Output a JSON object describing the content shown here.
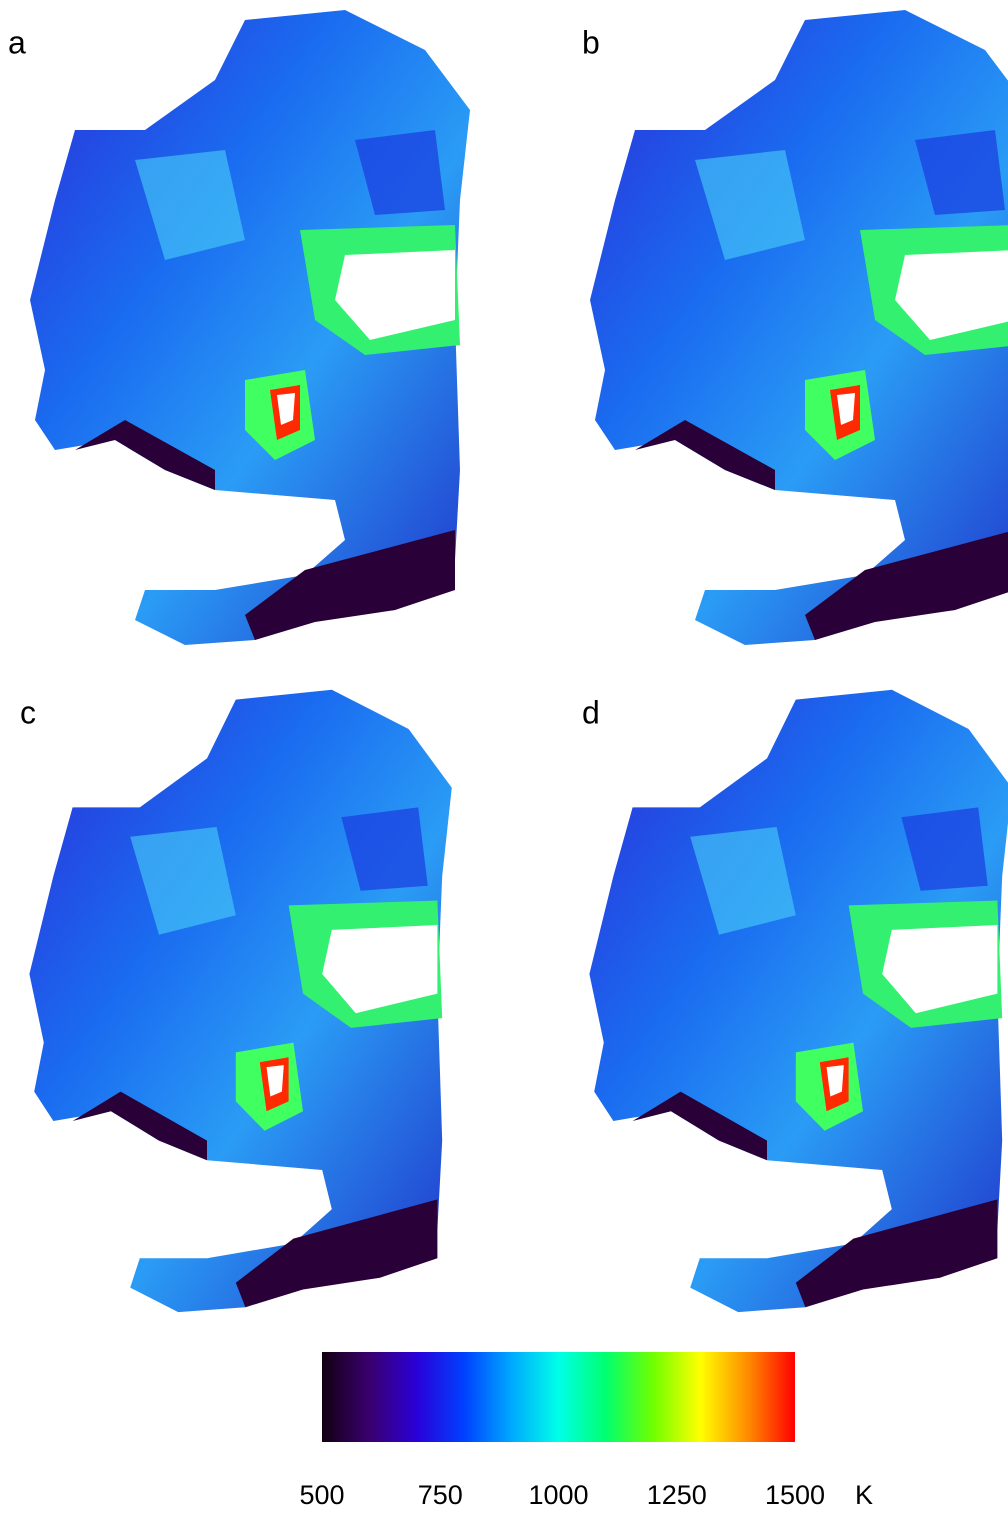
{
  "panels": [
    {
      "label": "a"
    },
    {
      "label": "b"
    },
    {
      "label": "c"
    },
    {
      "label": "d"
    }
  ],
  "colorbar": {
    "lim": [
      500,
      1500
    ],
    "ticks": [
      500,
      750,
      1000,
      1250,
      1500
    ],
    "unit": "K",
    "colors": [
      "#120012",
      "#3a006e",
      "#2a00d8",
      "#0040ff",
      "#00a8ff",
      "#00ffe8",
      "#00ff70",
      "#70ff00",
      "#ffff00",
      "#ff8c00",
      "#ff0000"
    ]
  }
}
